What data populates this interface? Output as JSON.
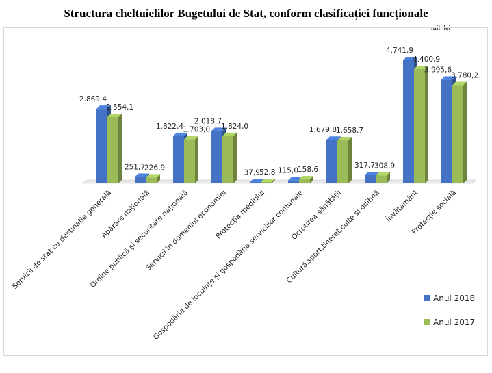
{
  "chart_data": {
    "type": "bar",
    "title": "Structura cheltuielilor Bugetului de Stat, conform clasificației funcționale",
    "unit": "mil. lei",
    "xlabel": "",
    "ylabel": "",
    "ylim": [
      0,
      5000
    ],
    "grid": false,
    "legend": "right",
    "categories": [
      "Servicii de stat cu destinație generală",
      "Apărare națională",
      "Ordine publică și securitate națională",
      "Servicii în domeniul economiei",
      "Protecția mediului",
      "Gospodăria de locuințe și gospodăria  serviciilor comunale",
      "Ocrotirea sănătății",
      "Cultură,sport,tineret,culte și odihnă",
      "Învățământ",
      "Protecție socială"
    ],
    "series": [
      {
        "name": "Anul 2018",
        "color": "#4472c4",
        "values": [
          2869.4,
          251.7,
          1822.4,
          2018.7,
          37.9,
          115.0,
          1679.8,
          317.7,
          4741.9,
          3995.6
        ],
        "labels": [
          "2.869,4",
          "251,7",
          "1.822,4",
          "2.018,7",
          "37,9",
          "115,0",
          "1.679,8",
          "317,7",
          "4.741,9",
          "3.995,6"
        ]
      },
      {
        "name": "Anul 2017",
        "color": "#9bbb59",
        "values": [
          2554.1,
          226.9,
          1703.0,
          1824.0,
          52.8,
          158.6,
          1658.7,
          308.9,
          4400.9,
          3780.2
        ],
        "labels": [
          "2.554,1",
          "226,9",
          "1.703,0",
          "1.824,0",
          "52,8",
          "158,6",
          "1.658,7",
          "308,9",
          "4.400,9",
          "3.780,2"
        ]
      }
    ]
  }
}
